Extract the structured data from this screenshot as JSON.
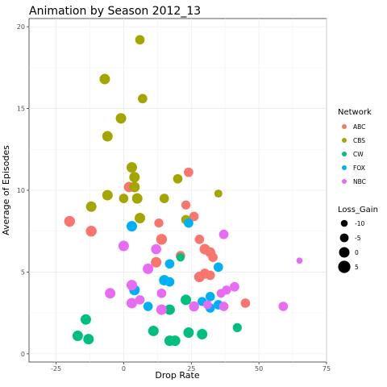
{
  "chart_data": {
    "type": "scatter",
    "title": "Animation by Season 2012_13",
    "xlabel": "Drop Rate",
    "ylabel": "Average of Episodes",
    "xlim": [
      -35,
      75
    ],
    "ylim": [
      -0.5,
      20.5
    ],
    "xticks": [
      -25,
      0,
      25,
      50,
      75
    ],
    "xtick_labels": [
      "-25",
      "0",
      "25",
      "50",
      "75"
    ],
    "yticks": [
      0,
      5,
      10,
      15,
      20
    ],
    "ytick_labels": [
      "0",
      "5",
      "10",
      "15",
      "20"
    ],
    "grid": true,
    "legend_position": "right",
    "color_legend": {
      "title": "Network",
      "entries": [
        {
          "name": "ABC",
          "color": "#F8766D"
        },
        {
          "name": "CBS",
          "color": "#A3A500"
        },
        {
          "name": "CW",
          "color": "#00BF7D"
        },
        {
          "name": "FOX",
          "color": "#00B0F6"
        },
        {
          "name": "NBC",
          "color": "#E76BF3"
        }
      ]
    },
    "size_legend": {
      "title": "Loss_Gain",
      "entries": [
        {
          "label": "-10",
          "value": -10
        },
        {
          "label": "-5",
          "value": -5
        },
        {
          "label": "0",
          "value": 0
        },
        {
          "label": "5",
          "value": 5
        }
      ]
    },
    "series": [
      {
        "name": "ABC",
        "color": "#F8766D",
        "points": [
          {
            "x": -20,
            "y": 8.1,
            "size": 1
          },
          {
            "x": -12,
            "y": 7.5,
            "size": 1
          },
          {
            "x": 2,
            "y": 10.2,
            "size": 0
          },
          {
            "x": 13,
            "y": 8.0,
            "size": -4
          },
          {
            "x": 23,
            "y": 9.1,
            "size": -4
          },
          {
            "x": 24,
            "y": 11.1,
            "size": -3
          },
          {
            "x": 26,
            "y": 8.4,
            "size": -3
          },
          {
            "x": 14,
            "y": 7.0,
            "size": 1
          },
          {
            "x": 12,
            "y": 5.6,
            "size": 0
          },
          {
            "x": 21,
            "y": 6.0,
            "size": -3
          },
          {
            "x": 28,
            "y": 7.0,
            "size": -3
          },
          {
            "x": 30,
            "y": 6.4,
            "size": 0
          },
          {
            "x": 32,
            "y": 6.2,
            "size": -1
          },
          {
            "x": 33,
            "y": 5.9,
            "size": -3
          },
          {
            "x": 28,
            "y": 4.7,
            "size": 0
          },
          {
            "x": 30,
            "y": 4.9,
            "size": -1
          },
          {
            "x": 32,
            "y": 4.8,
            "size": -3
          },
          {
            "x": 45,
            "y": 3.1,
            "size": -3
          }
        ]
      },
      {
        "name": "CBS",
        "color": "#A3A500",
        "points": [
          {
            "x": 6,
            "y": 19.2,
            "size": -3
          },
          {
            "x": -7,
            "y": 16.8,
            "size": 0
          },
          {
            "x": 7,
            "y": 15.6,
            "size": -3
          },
          {
            "x": -1,
            "y": 14.4,
            "size": 0
          },
          {
            "x": -6,
            "y": 13.3,
            "size": 0
          },
          {
            "x": 3,
            "y": 11.4,
            "size": 0
          },
          {
            "x": 4,
            "y": 10.8,
            "size": 0
          },
          {
            "x": 4,
            "y": 10.2,
            "size": 0
          },
          {
            "x": -6,
            "y": 9.7,
            "size": 0
          },
          {
            "x": 0,
            "y": 9.5,
            "size": -3
          },
          {
            "x": 5,
            "y": 9.5,
            "size": 0
          },
          {
            "x": 15,
            "y": 9.5,
            "size": -3
          },
          {
            "x": 20,
            "y": 10.7,
            "size": -3
          },
          {
            "x": 35,
            "y": 9.8,
            "size": -7
          },
          {
            "x": -12,
            "y": 9.0,
            "size": 0
          },
          {
            "x": 6,
            "y": 8.3,
            "size": 0
          },
          {
            "x": 23,
            "y": 8.2,
            "size": -3
          }
        ]
      },
      {
        "name": "CW",
        "color": "#00BF7D",
        "points": [
          {
            "x": -17,
            "y": 1.1,
            "size": 0
          },
          {
            "x": -14,
            "y": 2.1,
            "size": 0
          },
          {
            "x": -13,
            "y": 0.9,
            "size": 0
          },
          {
            "x": 11,
            "y": 1.4,
            "size": 0
          },
          {
            "x": 17,
            "y": 2.7,
            "size": 0
          },
          {
            "x": 17,
            "y": 0.8,
            "size": 0
          },
          {
            "x": 19,
            "y": 0.8,
            "size": 0
          },
          {
            "x": 23,
            "y": 3.3,
            "size": 0
          },
          {
            "x": 24,
            "y": 1.3,
            "size": 0
          },
          {
            "x": 29,
            "y": 1.2,
            "size": 0
          },
          {
            "x": 42,
            "y": 1.6,
            "size": -4
          },
          {
            "x": 21,
            "y": 5.9,
            "size": -6
          }
        ]
      },
      {
        "name": "FOX",
        "color": "#00B0F6",
        "points": [
          {
            "x": 3,
            "y": 7.8,
            "size": 0
          },
          {
            "x": 24,
            "y": 8.0,
            "size": -3
          },
          {
            "x": 17,
            "y": 5.5,
            "size": -3
          },
          {
            "x": 15,
            "y": 4.5,
            "size": 0
          },
          {
            "x": 17,
            "y": 4.4,
            "size": -3
          },
          {
            "x": 35,
            "y": 5.3,
            "size": -3
          },
          {
            "x": 4,
            "y": 3.9,
            "size": 0
          },
          {
            "x": 9,
            "y": 2.9,
            "size": -3
          },
          {
            "x": 29,
            "y": 3.2,
            "size": -4
          },
          {
            "x": 32,
            "y": 3.5,
            "size": -3
          },
          {
            "x": 32,
            "y": 2.8,
            "size": -3
          },
          {
            "x": 35,
            "y": 3.0,
            "size": -3
          }
        ]
      },
      {
        "name": "NBC",
        "color": "#E76BF3",
        "points": [
          {
            "x": 0,
            "y": 6.6,
            "size": 0
          },
          {
            "x": 9,
            "y": 5.2,
            "size": 0
          },
          {
            "x": 12,
            "y": 6.4,
            "size": -1
          },
          {
            "x": 37,
            "y": 7.3,
            "size": -3
          },
          {
            "x": 3,
            "y": 4.2,
            "size": 0
          },
          {
            "x": 6,
            "y": 3.3,
            "size": -3
          },
          {
            "x": -5,
            "y": 3.7,
            "size": 0
          },
          {
            "x": 3,
            "y": 3.1,
            "size": 0
          },
          {
            "x": 14,
            "y": 3.7,
            "size": -3
          },
          {
            "x": 14,
            "y": 2.7,
            "size": 0
          },
          {
            "x": 26,
            "y": 2.9,
            "size": -1
          },
          {
            "x": 31,
            "y": 3.0,
            "size": -5
          },
          {
            "x": 37,
            "y": 2.9,
            "size": -3
          },
          {
            "x": 36,
            "y": 3.7,
            "size": -5
          },
          {
            "x": 38,
            "y": 3.9,
            "size": -4
          },
          {
            "x": 41,
            "y": 4.1,
            "size": -3
          },
          {
            "x": 59,
            "y": 2.9,
            "size": -3
          },
          {
            "x": 65,
            "y": 5.7,
            "size": -12
          }
        ]
      }
    ]
  }
}
